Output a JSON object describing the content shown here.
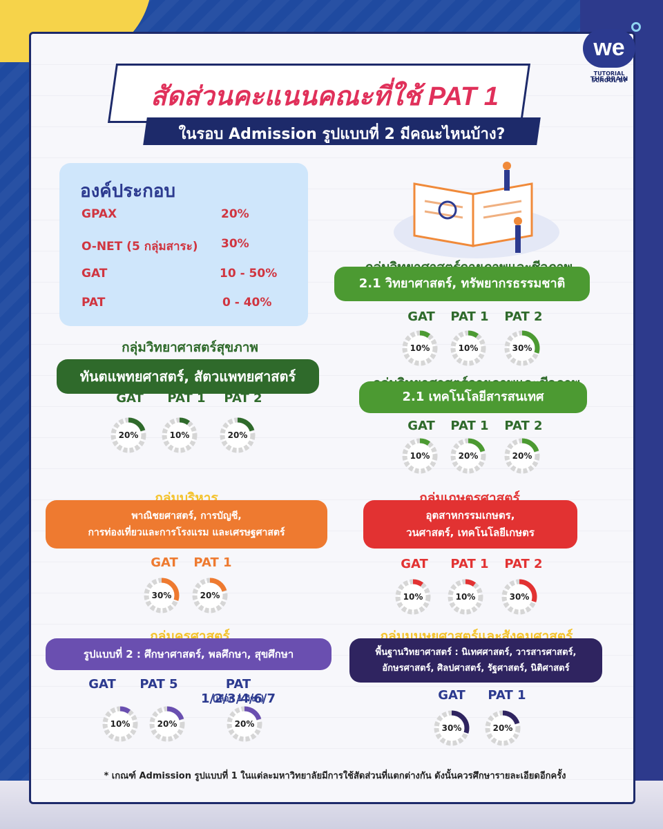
{
  "logo": {
    "mark": "we",
    "line1": "TUTORIAL SCHOOL BY",
    "line2": "THE BRAIN"
  },
  "title": "สัดส่วนคะแนนคณะที่ใช้ PAT 1",
  "subtitle": "ในรอบ Admission รูปแบบที่ 2 มีคณะไหนบ้าง?",
  "composition": {
    "title": "องค์ประกอบ",
    "rows": [
      {
        "name": "GPAX",
        "value": "20%"
      },
      {
        "name": "O-NET (5 กลุ่มสาระ)",
        "value": "30%"
      },
      {
        "name": "GAT",
        "value": "10 - 50%"
      },
      {
        "name": "PAT",
        "value": "0 - 40%"
      }
    ]
  },
  "groups": {
    "health": {
      "head": "กลุ่มวิทยาศาสตร์สุขภาพ",
      "lines": [
        "ทันตแพทยศาสตร์, สัตวแพทยศาสตร์"
      ],
      "color": "#2f6a2b",
      "items": [
        {
          "label": "GAT",
          "pct": 20,
          "text": "20%"
        },
        {
          "label": "PAT 1",
          "pct": 10,
          "text": "10%"
        },
        {
          "label": "PAT 2",
          "pct": 20,
          "text": "20%"
        }
      ]
    },
    "physbio1": {
      "head": "กลุ่มวิทยาศาสตร์กายภาพและชีวภาพ",
      "lines": [
        "2.1 วิทยาศาสตร์, ทรัพยากรธรรมชาติ"
      ],
      "color": "#4c9a32",
      "items": [
        {
          "label": "GAT",
          "pct": 10,
          "text": "10%"
        },
        {
          "label": "PAT 1",
          "pct": 10,
          "text": "10%"
        },
        {
          "label": "PAT 2",
          "pct": 30,
          "text": "30%"
        }
      ]
    },
    "physbio2": {
      "head": "กลุ่มวิทยาศาสตร์กายภาพและชีวภาพ",
      "lines": [
        "2.1 เทคโนโลยีสารสนเทศ"
      ],
      "color": "#4c9a32",
      "items": [
        {
          "label": "GAT",
          "pct": 10,
          "text": "10%"
        },
        {
          "label": "PAT 1",
          "pct": 20,
          "text": "20%"
        },
        {
          "label": "PAT 2",
          "pct": 20,
          "text": "20%"
        }
      ]
    },
    "business": {
      "head": "กลุ่มบริหาร",
      "lines": [
        "พาณิชยศาสตร์, การบัญชี,",
        "การท่องเที่ยวและการโรงแรม และเศรษฐศาสตร์"
      ],
      "color": "#ee7a30",
      "items": [
        {
          "label": "GAT",
          "pct": 30,
          "text": "30%"
        },
        {
          "label": "PAT 1",
          "pct": 20,
          "text": "20%"
        }
      ]
    },
    "agri": {
      "head": "กลุ่มเกษตรศาสตร์",
      "lines": [
        "อุตสาหกรรมเกษตร,",
        "วนศาสตร์, เทคโนโลยีเกษตร"
      ],
      "color": "#e23232",
      "items": [
        {
          "label": "GAT",
          "pct": 10,
          "text": "10%"
        },
        {
          "label": "PAT 1",
          "pct": 10,
          "text": "10%"
        },
        {
          "label": "PAT 2",
          "pct": 30,
          "text": "30%"
        }
      ]
    },
    "education": {
      "head": "กลุ่มครุศาสตร์",
      "lines": [
        "รูปแบบที่ 2 : ศึกษาศาสตร์, พลศึกษา, สุขศึกษา"
      ],
      "color": "#6a4fb0",
      "items": [
        {
          "label": "GAT",
          "pct": 10,
          "text": "10%"
        },
        {
          "label": "PAT 5",
          "pct": 20,
          "text": "20%"
        },
        {
          "label": "PAT 1/2/3/4/6/7",
          "pct": 20,
          "text": "20%",
          "note": "(เลือก 1 วิชา)"
        }
      ]
    },
    "humanities": {
      "head": "กลุ่มมนุษยศาสตร์และสังคมศาสตร์",
      "lines": [
        "พื้นฐานวิทยาศาสตร์ : นิเทศศาสตร์, วารสารศาสตร์,",
        "อักษรศาสตร์, ศิลปศาสตร์, รัฐศาสตร์, นิติศาสตร์"
      ],
      "color": "#2f2460",
      "items": [
        {
          "label": "GAT",
          "pct": 30,
          "text": "30%"
        },
        {
          "label": "PAT 1",
          "pct": 20,
          "text": "20%"
        }
      ]
    }
  },
  "footnote": "* เกณฑ์ Admission รูปแบบที่ 1 ในแต่ละมหาวิทยาลัยมีการใช้สัดส่วนที่แตกต่างกัน ดังนั้นควรศึกษารายละเอียดอีกครั้ง"
}
